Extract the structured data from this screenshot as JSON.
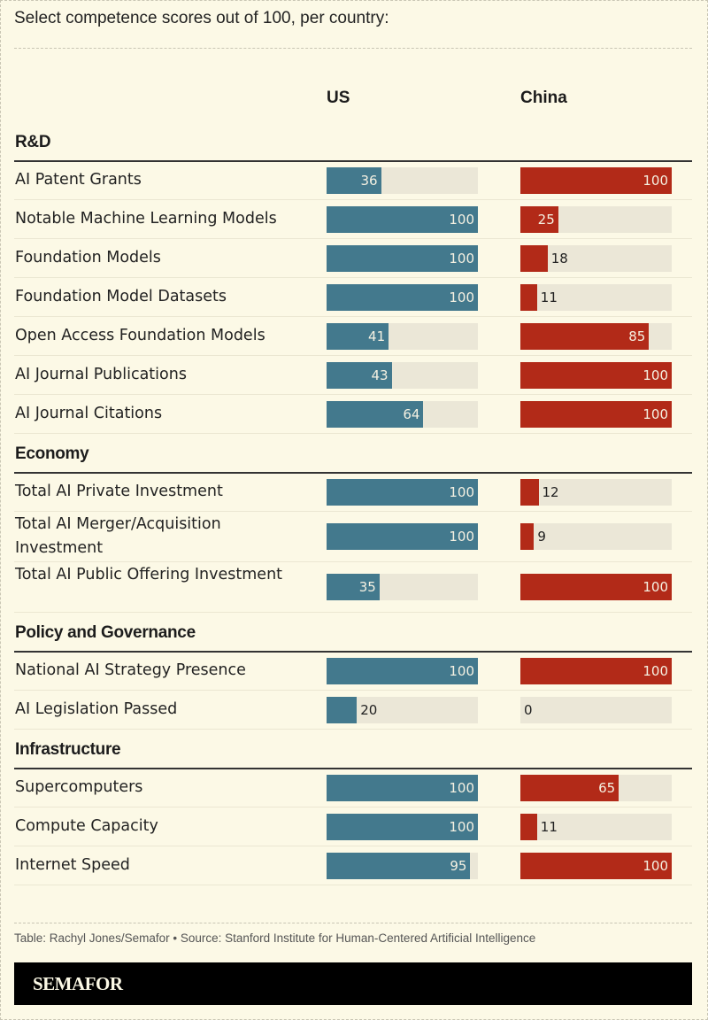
{
  "subtitle": "Select competence scores out of 100, per country:",
  "columns": {
    "us": "US",
    "china": "China"
  },
  "colors": {
    "us": "#43798d",
    "china": "#b22a18",
    "track": "#ebe7d7",
    "background": "#fcf9e6"
  },
  "source": "Table: Rachyl Jones/Semafor • Source: Stanford Institute for Human-Centered Artificial Intelligence",
  "brand": "SEMAFOR",
  "chart_data": {
    "type": "table",
    "title": "Select competence scores out of 100, per country:",
    "max": 100,
    "series": [
      "US",
      "China"
    ],
    "sections": [
      {
        "name": "R&D",
        "rows": [
          {
            "label": "AI Patent Grants",
            "us": 36,
            "china": 100
          },
          {
            "label": "Notable Machine Learning Models",
            "us": 100,
            "china": 25
          },
          {
            "label": "Foundation Models",
            "us": 100,
            "china": 18
          },
          {
            "label": "Foundation Model Datasets",
            "us": 100,
            "china": 11
          },
          {
            "label": "Open Access Foundation Models",
            "us": 41,
            "china": 85
          },
          {
            "label": "AI Journal Publications",
            "us": 43,
            "china": 100
          },
          {
            "label": "AI Journal Citations",
            "us": 64,
            "china": 100
          }
        ]
      },
      {
        "name": "Economy",
        "rows": [
          {
            "label": "Total AI Private Investment",
            "us": 100,
            "china": 12
          },
          {
            "label": "Total AI Merger/Acquisition Investment",
            "us": 100,
            "china": 9
          },
          {
            "label": "Total AI Public Offering Investment",
            "us": 35,
            "china": 100
          }
        ]
      },
      {
        "name": "Policy and Governance",
        "rows": [
          {
            "label": "National AI Strategy Presence",
            "us": 100,
            "china": 100
          },
          {
            "label": "AI Legislation Passed",
            "us": 20,
            "china": 0
          }
        ]
      },
      {
        "name": "Infrastructure",
        "rows": [
          {
            "label": "Supercomputers",
            "us": 100,
            "china": 65
          },
          {
            "label": "Compute Capacity",
            "us": 100,
            "china": 11
          },
          {
            "label": "Internet Speed",
            "us": 95,
            "china": 100
          }
        ]
      }
    ]
  }
}
